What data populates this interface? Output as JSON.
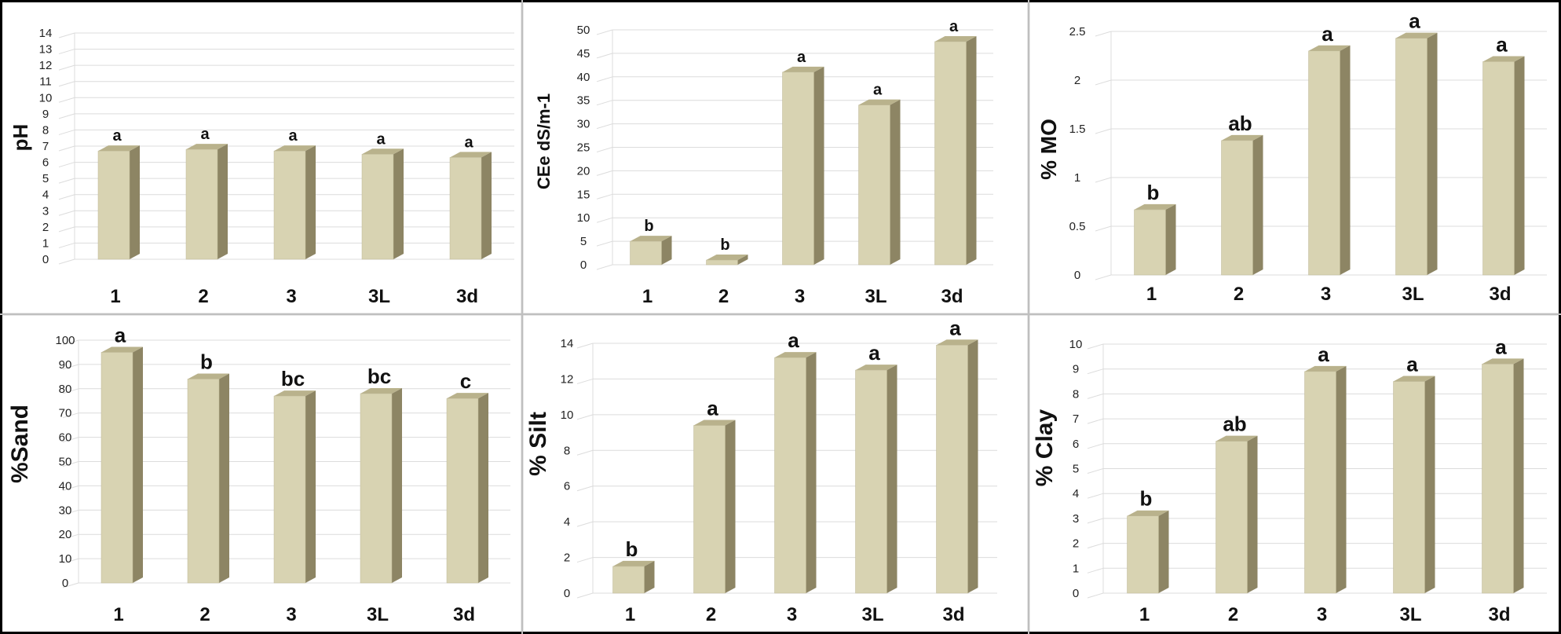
{
  "colors": {
    "bar_front": "#d8d3b2",
    "bar_side": "#8d8564",
    "bar_top": "#b9b28c",
    "grid": "#dcdcdc",
    "frame": "#000000"
  },
  "chart_data": [
    {
      "type": "bar",
      "ylabel": "pH",
      "categories": [
        "1",
        "2",
        "3",
        "3L",
        "3d"
      ],
      "values": [
        6.7,
        6.8,
        6.7,
        6.5,
        6.3
      ],
      "letters": [
        "a",
        "a",
        "a",
        "a",
        "a"
      ],
      "ylim": [
        0,
        14
      ],
      "yticks": [
        "0",
        "1",
        "2",
        "3",
        "4",
        "5",
        "6",
        "7",
        "8",
        "9",
        "10",
        "11",
        "12",
        "13",
        "14"
      ],
      "grid": true
    },
    {
      "type": "bar",
      "ylabel": "CEe dS/m-1",
      "categories": [
        "1",
        "2",
        "3",
        "3L",
        "3d"
      ],
      "values": [
        5,
        1,
        41,
        34,
        47.5
      ],
      "letters": [
        "b",
        "b",
        "a",
        "a",
        "a"
      ],
      "ylim": [
        0,
        50
      ],
      "yticks": [
        "0",
        "5",
        "10",
        "15",
        "20",
        "25",
        "30",
        "35",
        "40",
        "45",
        "50"
      ],
      "grid": true
    },
    {
      "type": "bar",
      "ylabel": "% MO",
      "categories": [
        "1",
        "2",
        "3",
        "3L",
        "3d"
      ],
      "values": [
        0.67,
        1.38,
        2.3,
        2.43,
        2.19
      ],
      "letters": [
        "b",
        "ab",
        "a",
        "a",
        "a"
      ],
      "ylim": [
        0,
        2.5
      ],
      "yticks": [
        "0",
        "0.5",
        "1",
        "1.5",
        "2",
        "2.5"
      ],
      "grid": true
    },
    {
      "type": "bar",
      "ylabel": "%Sand",
      "categories": [
        "1",
        "2",
        "3",
        "3L",
        "3d"
      ],
      "values": [
        95,
        84,
        77,
        78,
        76
      ],
      "letters": [
        "a",
        "b",
        "bc",
        "bc",
        "c"
      ],
      "ylim": [
        0,
        100
      ],
      "yticks": [
        "0",
        "10",
        "20",
        "30",
        "40",
        "50",
        "60",
        "70",
        "80",
        "90",
        "100"
      ],
      "grid": true
    },
    {
      "type": "bar",
      "ylabel": "% Silt",
      "categories": [
        "1",
        "2",
        "3",
        "3L",
        "3d"
      ],
      "values": [
        1.5,
        9.4,
        13.2,
        12.5,
        13.9
      ],
      "letters": [
        "b",
        "a",
        "a",
        "a",
        "a"
      ],
      "ylim": [
        0,
        14
      ],
      "yticks": [
        "0",
        "2",
        "4",
        "6",
        "8",
        "10",
        "12",
        "14"
      ],
      "grid": true
    },
    {
      "type": "bar",
      "ylabel": "% Clay",
      "categories": [
        "1",
        "2",
        "3",
        "3L",
        "3d"
      ],
      "values": [
        3.1,
        6.1,
        8.9,
        8.5,
        9.2
      ],
      "letters": [
        "b",
        "ab",
        "a",
        "a",
        "a"
      ],
      "ylim": [
        0,
        10
      ],
      "yticks": [
        "0",
        "1",
        "2",
        "3",
        "4",
        "5",
        "6",
        "7",
        "8",
        "9",
        "10"
      ],
      "grid": true
    }
  ]
}
